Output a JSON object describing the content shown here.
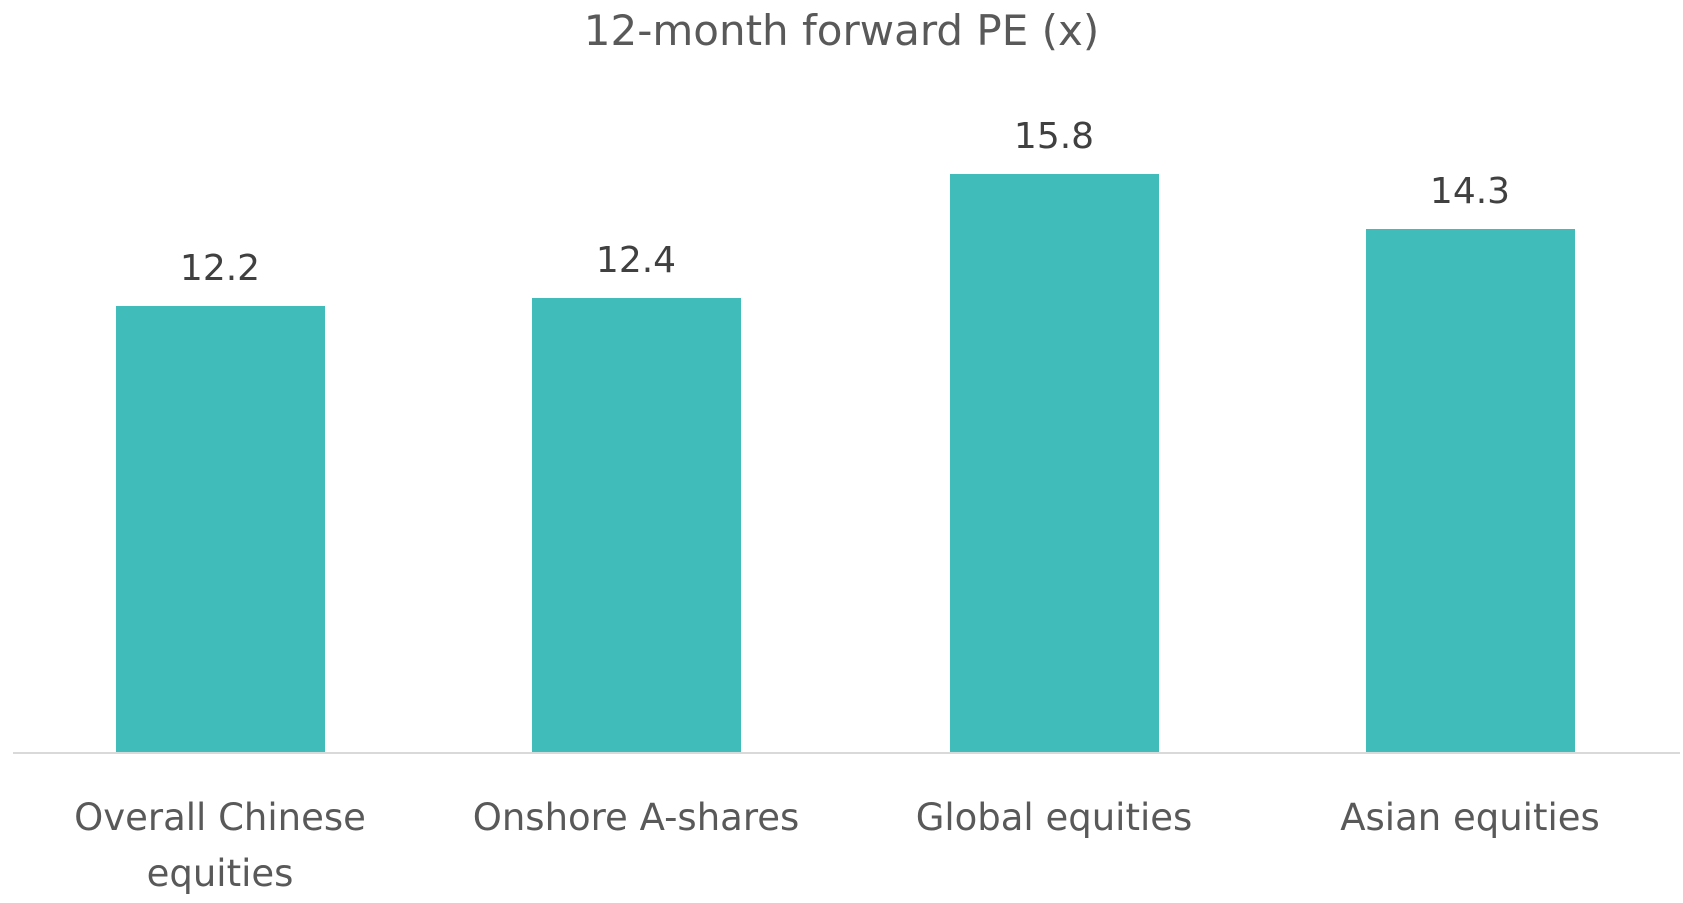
{
  "chart_data": {
    "type": "bar",
    "title": "12-month forward PE (x)",
    "categories": [
      "Overall Chinese equities",
      "Onshore A-shares",
      "Global equities",
      "Asian equities"
    ],
    "values": [
      12.2,
      12.4,
      15.8,
      14.3
    ],
    "color": "#40bdbb"
  }
}
